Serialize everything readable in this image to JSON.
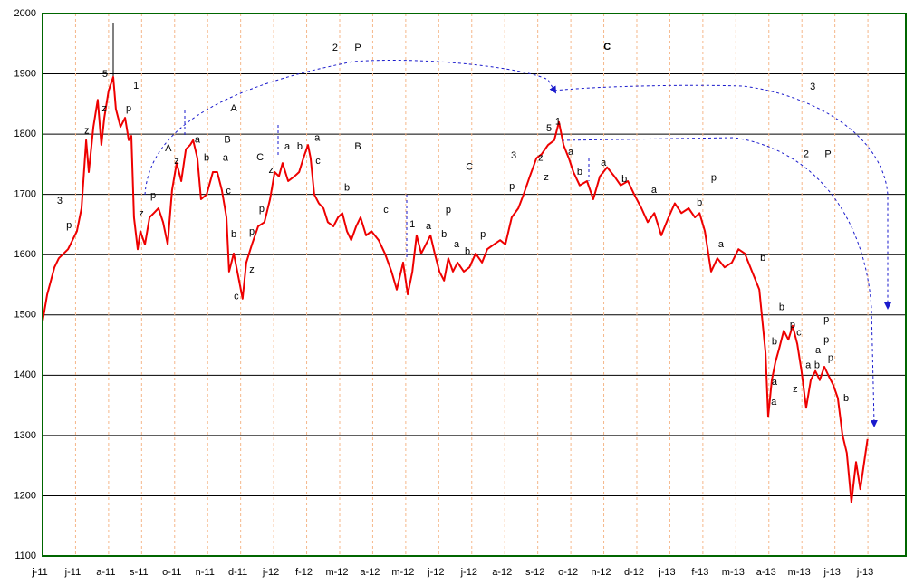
{
  "chart_data": {
    "type": "line",
    "color": "#ee0000",
    "grid": true,
    "xlim": [
      0,
      26.15
    ],
    "ylim": [
      1100,
      2000
    ],
    "yticks": [
      1100,
      1200,
      1300,
      1400,
      1500,
      1600,
      1700,
      1800,
      1900,
      2000
    ],
    "xticks": [
      {
        "value": 0,
        "label": "j-11"
      },
      {
        "value": 1,
        "label": "j-11"
      },
      {
        "value": 2,
        "label": "a-11"
      },
      {
        "value": 3,
        "label": "s-11"
      },
      {
        "value": 4,
        "label": "o-11"
      },
      {
        "value": 5,
        "label": "n-11"
      },
      {
        "value": 6,
        "label": "d-11"
      },
      {
        "value": 7,
        "label": "j-12"
      },
      {
        "value": 8,
        "label": "f-12"
      },
      {
        "value": 9,
        "label": "m-12"
      },
      {
        "value": 10,
        "label": "a-12"
      },
      {
        "value": 11,
        "label": "m-12"
      },
      {
        "value": 12,
        "label": "j-12"
      },
      {
        "value": 13,
        "label": "j-12"
      },
      {
        "value": 14,
        "label": "a-12"
      },
      {
        "value": 15,
        "label": "s-12"
      },
      {
        "value": 16,
        "label": "o-12"
      },
      {
        "value": 17,
        "label": "n-12"
      },
      {
        "value": 18,
        "label": "d-12"
      },
      {
        "value": 19,
        "label": "j-13"
      },
      {
        "value": 20,
        "label": "f-13"
      },
      {
        "value": 21,
        "label": "m-13"
      },
      {
        "value": 22,
        "label": "a-13"
      },
      {
        "value": 23,
        "label": "m-13"
      },
      {
        "value": 24,
        "label": "j-13"
      },
      {
        "value": 25,
        "label": "j-13"
      }
    ],
    "x": [
      0,
      0.14,
      0.36,
      0.49,
      0.77,
      1.04,
      1.18,
      1.32,
      1.4,
      1.54,
      1.67,
      1.78,
      1.87,
      2.0,
      2.14,
      2.22,
      2.36,
      2.5,
      2.61,
      2.69,
      2.77,
      2.88,
      2.96,
      3.1,
      3.24,
      3.37,
      3.51,
      3.65,
      3.79,
      3.92,
      4.06,
      4.2,
      4.34,
      4.47,
      4.56,
      4.69,
      4.8,
      4.97,
      5.16,
      5.29,
      5.43,
      5.57,
      5.65,
      5.79,
      5.9,
      6.06,
      6.17,
      6.34,
      6.53,
      6.72,
      6.89,
      7.03,
      7.16,
      7.27,
      7.44,
      7.63,
      7.77,
      7.9,
      8.04,
      8.12,
      8.23,
      8.37,
      8.51,
      8.64,
      8.81,
      8.95,
      9.08,
      9.22,
      9.35,
      9.5,
      9.63,
      9.8,
      9.96,
      10.18,
      10.37,
      10.57,
      10.73,
      10.92,
      11.06,
      11.2,
      11.33,
      11.47,
      11.61,
      11.75,
      11.88,
      12.02,
      12.16,
      12.29,
      12.43,
      12.57,
      12.76,
      12.93,
      13.12,
      13.31,
      13.47,
      13.67,
      13.86,
      14.02,
      14.21,
      14.41,
      14.57,
      14.76,
      14.96,
      15.12,
      15.31,
      15.5,
      15.64,
      15.78,
      15.94,
      16.08,
      16.27,
      16.49,
      16.68,
      16.88,
      17.1,
      17.32,
      17.51,
      17.73,
      17.92,
      18.14,
      18.33,
      18.53,
      18.74,
      18.96,
      19.15,
      19.35,
      19.57,
      19.76,
      19.9,
      20.06,
      20.25,
      20.44,
      20.66,
      20.88,
      21.08,
      21.27,
      21.49,
      21.71,
      21.9,
      21.98,
      22.09,
      22.2,
      22.31,
      22.45,
      22.59,
      22.72,
      22.86,
      22.99,
      23.13,
      23.27,
      23.41,
      23.54,
      23.68,
      23.81,
      23.95,
      24.09,
      24.23,
      24.36,
      24.5,
      24.64,
      24.77,
      24.91,
      24.99
    ],
    "values": [
      1489,
      1534,
      1579,
      1594,
      1609,
      1639,
      1677,
      1790,
      1737,
      1812,
      1857,
      1782,
      1827,
      1872,
      1895,
      1842,
      1812,
      1827,
      1790,
      1797,
      1662,
      1609,
      1639,
      1617,
      1662,
      1669,
      1677,
      1654,
      1617,
      1707,
      1752,
      1722,
      1775,
      1782,
      1790,
      1760,
      1692,
      1700,
      1737,
      1737,
      1707,
      1662,
      1572,
      1602,
      1572,
      1527,
      1587,
      1617,
      1647,
      1654,
      1692,
      1737,
      1730,
      1752,
      1722,
      1730,
      1737,
      1760,
      1782,
      1760,
      1700,
      1685,
      1677,
      1654,
      1647,
      1662,
      1669,
      1639,
      1624,
      1647,
      1662,
      1632,
      1639,
      1624,
      1602,
      1572,
      1542,
      1587,
      1534,
      1572,
      1632,
      1602,
      1617,
      1632,
      1602,
      1572,
      1557,
      1594,
      1572,
      1587,
      1572,
      1579,
      1602,
      1587,
      1609,
      1617,
      1624,
      1617,
      1662,
      1677,
      1700,
      1730,
      1760,
      1767,
      1782,
      1790,
      1820,
      1782,
      1760,
      1737,
      1715,
      1722,
      1692,
      1730,
      1745,
      1730,
      1715,
      1722,
      1700,
      1677,
      1654,
      1669,
      1632,
      1662,
      1685,
      1669,
      1677,
      1662,
      1669,
      1639,
      1572,
      1594,
      1579,
      1587,
      1609,
      1602,
      1572,
      1542,
      1437,
      1331,
      1392,
      1422,
      1444,
      1474,
      1459,
      1482,
      1452,
      1407,
      1346,
      1392,
      1407,
      1392,
      1414,
      1399,
      1384,
      1362,
      1301,
      1271,
      1189,
      1256,
      1211,
      1264,
      1294
    ],
    "annotations": [
      {
        "text": "5",
        "x": 1.89,
        "y": 1899,
        "color": "#1a1acc"
      },
      {
        "text": "1",
        "x": 2.83,
        "y": 1880,
        "color": "#1a1acc"
      },
      {
        "text": "3",
        "x": 0.52,
        "y": 1689,
        "color": "#1a1acc"
      },
      {
        "text": "p",
        "x": 0.8,
        "y": 1648,
        "color": "#1a1acc"
      },
      {
        "text": "z",
        "x": 1.34,
        "y": 1805,
        "color": "#1a1acc"
      },
      {
        "text": "z",
        "x": 1.87,
        "y": 1842,
        "color": "#1a1acc"
      },
      {
        "text": "p",
        "x": 2.61,
        "y": 1842,
        "color": "#1a1acc"
      },
      {
        "text": "z",
        "x": 2.99,
        "y": 1668,
        "color": "#1a1acc"
      },
      {
        "text": "p",
        "x": 3.35,
        "y": 1698,
        "color": "#119911"
      },
      {
        "text": "A",
        "x": 3.81,
        "y": 1776,
        "color": "#119911"
      },
      {
        "text": "z",
        "x": 4.06,
        "y": 1755,
        "color": "#119911"
      },
      {
        "text": "a",
        "x": 4.69,
        "y": 1790,
        "color": "#119911"
      },
      {
        "text": "b",
        "x": 4.97,
        "y": 1760,
        "color": "#119911"
      },
      {
        "text": "A",
        "x": 5.79,
        "y": 1842,
        "color": "#1a1acc"
      },
      {
        "text": "B",
        "x": 5.6,
        "y": 1790,
        "color": "#119911"
      },
      {
        "text": "a",
        "x": 5.54,
        "y": 1760,
        "color": "#1a1acc"
      },
      {
        "text": "c",
        "x": 5.63,
        "y": 1705,
        "color": "#119911"
      },
      {
        "text": "b",
        "x": 5.79,
        "y": 1633,
        "color": "#1a1acc"
      },
      {
        "text": "c",
        "x": 5.87,
        "y": 1530,
        "color": "#1a1acc"
      },
      {
        "text": "z",
        "x": 6.34,
        "y": 1575,
        "color": "#119911"
      },
      {
        "text": "C",
        "x": 6.59,
        "y": 1761,
        "color": "#119911"
      },
      {
        "text": "z",
        "x": 6.92,
        "y": 1740,
        "color": "#1a1acc"
      },
      {
        "text": "p",
        "x": 6.64,
        "y": 1675,
        "color": "#1a1acc"
      },
      {
        "text": "p",
        "x": 6.34,
        "y": 1638,
        "color": "#119911"
      },
      {
        "text": "a",
        "x": 7.41,
        "y": 1779,
        "color": "#119911"
      },
      {
        "text": "b",
        "x": 7.79,
        "y": 1779,
        "color": "#119911"
      },
      {
        "text": "a",
        "x": 8.32,
        "y": 1793,
        "color": "#1a1acc"
      },
      {
        "text": "c",
        "x": 8.34,
        "y": 1755,
        "color": "#119911"
      },
      {
        "text": "B",
        "x": 9.55,
        "y": 1779,
        "color": "#1a1acc"
      },
      {
        "text": "b",
        "x": 9.22,
        "y": 1711,
        "color": "#1a1acc"
      },
      {
        "text": "c",
        "x": 10.4,
        "y": 1674,
        "color": "#1a1acc"
      },
      {
        "text": "2",
        "x": 8.86,
        "y": 1943,
        "color": "#1a1acc"
      },
      {
        "text": "P",
        "x": 9.55,
        "y": 1943,
        "color": "#1a1acc"
      },
      {
        "text": "C",
        "x": 17.1,
        "y": 1944,
        "color": "#1a1acc"
      },
      {
        "text": "1",
        "x": 11.2,
        "y": 1650,
        "color": "#1a1acc"
      },
      {
        "text": "a",
        "x": 11.69,
        "y": 1647,
        "color": "#119911"
      },
      {
        "text": "b",
        "x": 12.16,
        "y": 1633,
        "color": "#119911"
      },
      {
        "text": "p",
        "x": 12.29,
        "y": 1674,
        "color": "#1a1acc"
      },
      {
        "text": "a",
        "x": 12.54,
        "y": 1617,
        "color": "#119911"
      },
      {
        "text": "b",
        "x": 12.87,
        "y": 1605,
        "color": "#119911"
      },
      {
        "text": "p",
        "x": 13.34,
        "y": 1633,
        "color": "#119911"
      },
      {
        "text": "C",
        "x": 12.93,
        "y": 1745,
        "color": "#1a1acc"
      },
      {
        "text": "3",
        "x": 14.27,
        "y": 1764,
        "color": "#1a1acc"
      },
      {
        "text": "p",
        "x": 14.22,
        "y": 1713,
        "color": "#119911"
      },
      {
        "text": "5",
        "x": 15.34,
        "y": 1809,
        "color": "#1a1acc"
      },
      {
        "text": "1",
        "x": 15.61,
        "y": 1820,
        "color": "#1a1acc"
      },
      {
        "text": "z",
        "x": 15.09,
        "y": 1760,
        "color": "#119911"
      },
      {
        "text": "z",
        "x": 15.26,
        "y": 1728,
        "color": "#1a1acc"
      },
      {
        "text": "a",
        "x": 16.0,
        "y": 1770,
        "color": "#1a1acc"
      },
      {
        "text": "b",
        "x": 16.27,
        "y": 1737,
        "color": "#1a1acc"
      },
      {
        "text": "a",
        "x": 16.99,
        "y": 1752,
        "color": "#1a1acc"
      },
      {
        "text": "b",
        "x": 17.62,
        "y": 1725,
        "color": "#1a1acc"
      },
      {
        "text": "a",
        "x": 18.52,
        "y": 1707,
        "color": "#1a1acc"
      },
      {
        "text": "3",
        "x": 23.33,
        "y": 1878,
        "color": "#1a1acc"
      },
      {
        "text": "2",
        "x": 23.13,
        "y": 1766,
        "color": "#1a1acc"
      },
      {
        "text": "P",
        "x": 23.79,
        "y": 1766,
        "color": "#1a1acc"
      },
      {
        "text": "b",
        "x": 19.9,
        "y": 1686,
        "color": "#1a1acc"
      },
      {
        "text": "p",
        "x": 20.33,
        "y": 1727,
        "color": "#1a1acc"
      },
      {
        "text": "a",
        "x": 20.55,
        "y": 1617,
        "color": "#1a1acc"
      },
      {
        "text": "b",
        "x": 21.82,
        "y": 1594,
        "color": "#1a1acc"
      },
      {
        "text": "b",
        "x": 22.39,
        "y": 1512,
        "color": "#119911"
      },
      {
        "text": "p",
        "x": 22.72,
        "y": 1483,
        "color": "#119911"
      },
      {
        "text": "c",
        "x": 22.91,
        "y": 1470,
        "color": "#1a1acc"
      },
      {
        "text": "b",
        "x": 22.17,
        "y": 1455,
        "color": "#1a1acc"
      },
      {
        "text": "a",
        "x": 22.17,
        "y": 1388,
        "color": "#1a1acc"
      },
      {
        "text": "a",
        "x": 22.15,
        "y": 1355,
        "color": "#119911"
      },
      {
        "text": "z",
        "x": 22.8,
        "y": 1376,
        "color": "#119911"
      },
      {
        "text": "p",
        "x": 23.74,
        "y": 1492,
        "color": "#1a1acc"
      },
      {
        "text": "p",
        "x": 23.74,
        "y": 1458,
        "color": "#119911"
      },
      {
        "text": "a",
        "x": 23.49,
        "y": 1441,
        "color": "#1a1acc"
      },
      {
        "text": "p",
        "x": 23.87,
        "y": 1428,
        "color": "#119911"
      },
      {
        "text": "a",
        "x": 23.19,
        "y": 1416,
        "color": "#119911"
      },
      {
        "text": "b",
        "x": 23.46,
        "y": 1416,
        "color": "#1a1acc"
      },
      {
        "text": "b",
        "x": 24.34,
        "y": 1361,
        "color": "#1a1acc"
      }
    ]
  }
}
